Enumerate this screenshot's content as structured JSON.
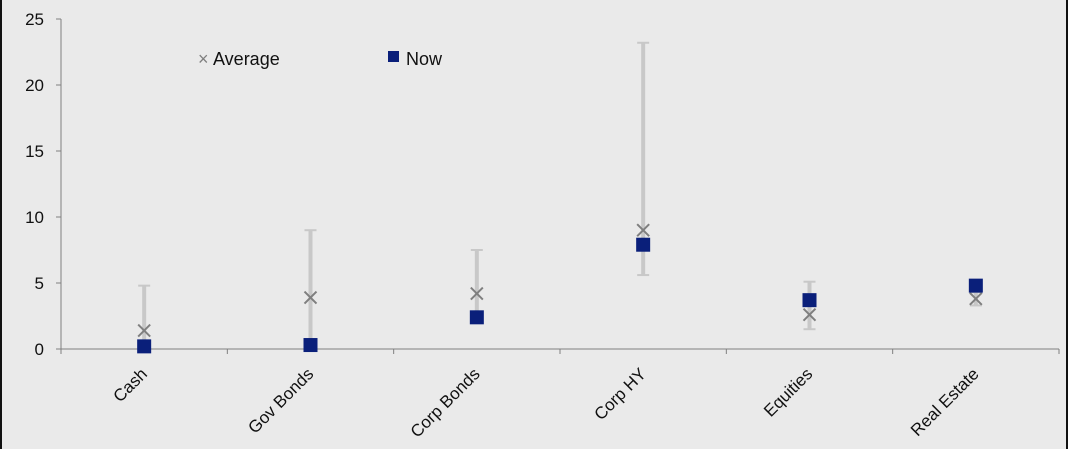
{
  "chart_data": {
    "type": "scatter",
    "title": "",
    "xlabel": "",
    "ylabel": "",
    "categories": [
      "Cash",
      "Gov Bonds",
      "Corp Bonds",
      "Corp HY",
      "Equities",
      "Real Estate"
    ],
    "ylim": [
      0,
      25
    ],
    "yticks": [
      0,
      5,
      10,
      15,
      20,
      25
    ],
    "ytick_labels": [
      "0",
      "5",
      "10",
      "15",
      "20",
      "25"
    ],
    "grid": false,
    "legend_position": "top-left",
    "ranges": {
      "low": [
        0.0,
        0.0,
        2.3,
        5.6,
        1.5,
        3.3
      ],
      "high": [
        4.8,
        9.0,
        7.5,
        23.2,
        5.1,
        4.3
      ]
    },
    "series": [
      {
        "name": "Average",
        "marker": "x",
        "color": "#7f7f7f",
        "values": [
          1.4,
          3.9,
          4.2,
          9.0,
          2.6,
          3.8
        ]
      },
      {
        "name": "Now",
        "marker": "square",
        "color": "#0a1f7a",
        "values": [
          0.2,
          0.3,
          2.4,
          7.9,
          3.7,
          4.8
        ]
      }
    ],
    "colors": {
      "range_bar": "#c8c8c8",
      "axis": "#808080",
      "background": "#eaeaea"
    }
  }
}
